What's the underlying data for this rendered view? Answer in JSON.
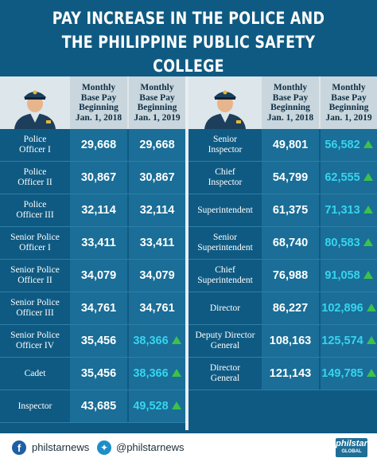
{
  "title_line1": "PAY INCREASE IN THE POLICE AND",
  "title_line2": "THE PHILIPPINE PUBLIC SAFETY COLLEGE",
  "headers": {
    "col_2018": "Monthly\nBase Pay\nBeginning\nJan. 1, 2018",
    "col_2019": "Monthly\nBase Pay\nBeginning\nJan. 1, 2019"
  },
  "colors": {
    "background": "#0f5a82",
    "increase_text": "#37d4ee",
    "arrow": "#3cc24a"
  },
  "left_rows": [
    {
      "rank": "Police\nOfficer I",
      "pay2018": "29,668",
      "pay2019": "29,668",
      "increase": false
    },
    {
      "rank": "Police\nOfficer II",
      "pay2018": "30,867",
      "pay2019": "30,867",
      "increase": false
    },
    {
      "rank": "Police\nOfficer III",
      "pay2018": "32,114",
      "pay2019": "32,114",
      "increase": false
    },
    {
      "rank": "Senior Police\nOfficer I",
      "pay2018": "33,411",
      "pay2019": "33,411",
      "increase": false
    },
    {
      "rank": "Senior Police\nOfficer II",
      "pay2018": "34,079",
      "pay2019": "34,079",
      "increase": false
    },
    {
      "rank": "Senior Police\nOfficer III",
      "pay2018": "34,761",
      "pay2019": "34,761",
      "increase": false
    },
    {
      "rank": "Senior Police\nOfficer IV",
      "pay2018": "35,456",
      "pay2019": "38,366",
      "increase": true
    },
    {
      "rank": "Cadet",
      "pay2018": "35,456",
      "pay2019": "38,366",
      "increase": true
    },
    {
      "rank": "Inspector",
      "pay2018": "43,685",
      "pay2019": "49,528",
      "increase": true
    }
  ],
  "right_rows": [
    {
      "rank": "Senior\nInspector",
      "pay2018": "49,801",
      "pay2019": "56,582",
      "increase": true
    },
    {
      "rank": "Chief\nInspector",
      "pay2018": "54,799",
      "pay2019": "62,555",
      "increase": true
    },
    {
      "rank": "Superintendent",
      "pay2018": "61,375",
      "pay2019": "71,313",
      "increase": true
    },
    {
      "rank": "Senior\nSuperintendent",
      "pay2018": "68,740",
      "pay2019": "80,583",
      "increase": true
    },
    {
      "rank": "Chief\nSuperintendent",
      "pay2018": "76,988",
      "pay2019": "91,058",
      "increase": true
    },
    {
      "rank": "Director",
      "pay2018": "86,227",
      "pay2019": "102,896",
      "increase": true
    },
    {
      "rank": "Deputy Director\nGeneral",
      "pay2018": "108,163",
      "pay2019": "125,574",
      "increase": true
    },
    {
      "rank": "Director\nGeneral",
      "pay2018": "121,143",
      "pay2019": "149,785",
      "increase": true
    }
  ],
  "footer": {
    "facebook_icon": "facebook-icon",
    "facebook": "philstarnews",
    "twitter_icon": "twitter-icon",
    "twitter": "@philstarnews",
    "logo": "philstar",
    "logo_sub": "GLOBAL"
  }
}
